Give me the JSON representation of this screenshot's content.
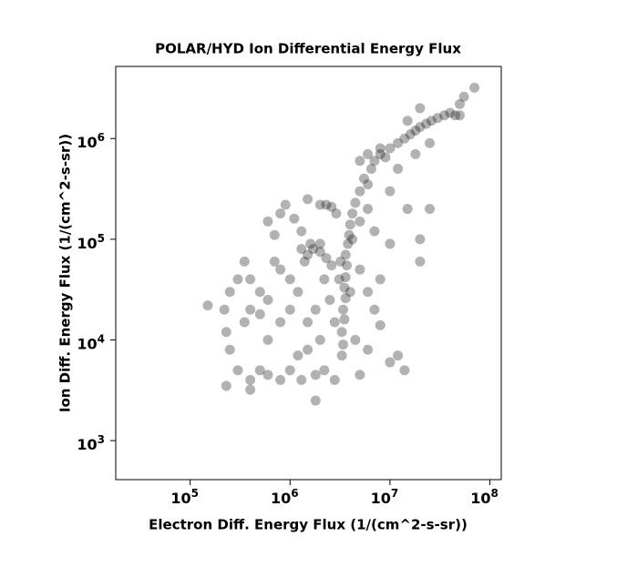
{
  "chart_data": {
    "type": "scatter",
    "title": "POLAR/HYD  Ion Differential Energy Flux",
    "x_label": "Electron Diff. Energy Flux (1/(cm^2-s-sr))",
    "y_label": "Ion Diff. Energy Flux (1/(cm^2-s-sr))",
    "x_log": true,
    "y_log": true,
    "color": "#000000",
    "xlim": [
      18000,
      130000000
    ],
    "ylim": [
      410,
      5200000
    ],
    "xticks": [
      {
        "value": 100000,
        "label": "10^5"
      },
      {
        "value": 1000000,
        "label": "10^6"
      },
      {
        "value": 10000000,
        "label": "10^7"
      },
      {
        "value": 100000000,
        "label": "10^8"
      }
    ],
    "yticks": [
      {
        "value": 1000,
        "label": "10^3"
      },
      {
        "value": 10000,
        "label": "10^4"
      },
      {
        "value": 100000,
        "label": "10^5"
      },
      {
        "value": 1000000,
        "label": "10^6"
      }
    ],
    "x": [
      3300000.0,
      3400000.0,
      3300000.0,
      3500000.0,
      3400000.0,
      3600000.0,
      3500000.0,
      3600000.0,
      3700000.0,
      3600000.0,
      3800000.0,
      3900000.0,
      4000000.0,
      4200000.0,
      4500000.0,
      3200000.0,
      4200000.0,
      3100000.0,
      4000000.0,
      2800000.0,
      5000000.0,
      5500000.0,
      6000000.0,
      6500000.0,
      7000000.0,
      8000000.0,
      9000000.0,
      10000000.0,
      12000000.0,
      14000000.0,
      16000000.0,
      18000000.0,
      20000000.0,
      23000000.0,
      26000000.0,
      30000000.0,
      35000000.0,
      40000000.0,
      45000000.0,
      50000000.0,
      50000000.0,
      55000000.0,
      70000000.0,
      20000000.0,
      15000000.0,
      25000000.0,
      12000000.0,
      8000000.0,
      6000000.0,
      5000000.0,
      10000000.0,
      15000000.0,
      25000000.0,
      20000000.0,
      20000000.0,
      6000000.0,
      7000000.0,
      5000000.0,
      18000000.0,
      1300000.0,
      1500000.0,
      1700000.0,
      2000000.0,
      2300000.0,
      2600000.0,
      1600000.0,
      2000000.0,
      1400000.0,
      2000000.0,
      2300000.0,
      2600000.0,
      2900000.0,
      1500000.0,
      800000.0,
      900000.0,
      600000.0,
      700000.0,
      1100000.0,
      1300000.0,
      300000.0,
      250000.0,
      220000.0,
      230000.0,
      250000.0,
      300000.0,
      400000.0,
      500000.0,
      600000.0,
      800000.0,
      1000000.0,
      1300000.0,
      1800000.0,
      2200000.0,
      2800000.0,
      350000.0,
      400000.0,
      500000.0,
      600000.0,
      500000.0,
      400000.0,
      350000.0,
      600000.0,
      800000.0,
      1000000.0,
      1200000.0,
      1000000.0,
      800000.0,
      1500000.0,
      1800000.0,
      2000000.0,
      1500000.0,
      2500000.0,
      2200000.0,
      150000.0,
      1800000.0,
      230000.0,
      400000.0,
      700000.0,
      1200000.0,
      5000000.0,
      6000000.0,
      7000000.0,
      8000000.0,
      6000000.0,
      5000000.0,
      10000000.0,
      14000000.0,
      12000000.0,
      8000000.0,
      10000000.0,
      4500000.0
    ],
    "y": [
      7000.0,
      9000.0,
      12000.0,
      16000.0,
      20000.0,
      26000.0,
      33000.0,
      42000.0,
      55000.0,
      70000.0,
      90000.0,
      110000.0,
      140000.0,
      180000.0,
      230000.0,
      60000.0,
      100000.0,
      40000.0,
      30000.0,
      15000.0,
      300000.0,
      400000.0,
      350000.0,
      500000.0,
      600000.0,
      700000.0,
      650000.0,
      800000.0,
      900000.0,
      1000000.0,
      1100000.0,
      1200000.0,
      1300000.0,
      1400000.0,
      1500000.0,
      1600000.0,
      1700000.0,
      1800000.0,
      1700000.0,
      1700000.0,
      2200000.0,
      2600000.0,
      3200000.0,
      2000000.0,
      1500000.0,
      900000.0,
      500000.0,
      800000.0,
      700000.0,
      600000.0,
      300000.0,
      200000.0,
      200000.0,
      100000.0,
      60000.0,
      200000.0,
      120000.0,
      150000.0,
      700000.0,
      80000.0,
      70000.0,
      80000.0,
      75000.0,
      65000.0,
      55000.0,
      90000.0,
      90000.0,
      60000.0,
      220000.0,
      220000.0,
      210000.0,
      180000.0,
      250000.0,
      180000.0,
      220000.0,
      150000.0,
      110000.0,
      160000.0,
      120000.0,
      40000.0,
      30000.0,
      20000.0,
      12000.0,
      8000.0,
      5000.0,
      4000.0,
      5000.0,
      4500.0,
      4000.0,
      5000.0,
      4000.0,
      4500.0,
      5000.0,
      4000.0,
      60000.0,
      40000.0,
      30000.0,
      25000.0,
      18000.0,
      20000.0,
      15000.0,
      10000.0,
      15000.0,
      20000.0,
      30000.0,
      40000.0,
      50000.0,
      15000.0,
      20000.0,
      10000.0,
      8000.0,
      25000.0,
      40000.0,
      22000.0,
      2500.0,
      3500.0,
      3200.0,
      60000.0,
      7000.0,
      50000.0,
      30000.0,
      20000.0,
      14000.0,
      8000.0,
      4500.0,
      6000.0,
      5000.0,
      7000.0,
      40000.0,
      90000.0,
      10000.0
    ]
  }
}
